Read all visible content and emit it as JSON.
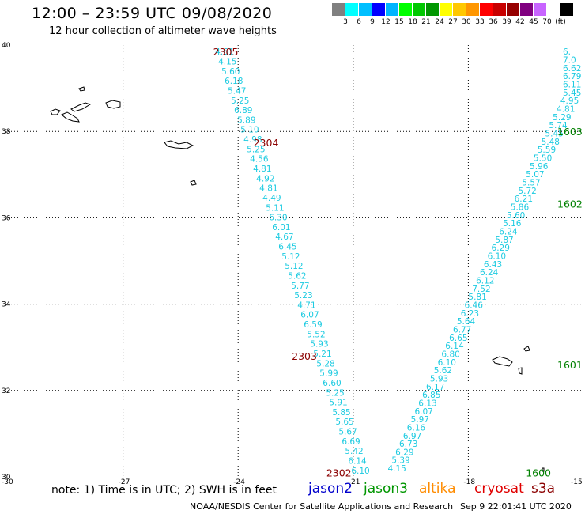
{
  "header": {
    "title": "12:00 – 23:59 UTC 09/08/2020",
    "subtitle": "12 hour collection of altimeter wave heights"
  },
  "scale": {
    "colors": [
      "#808080",
      "#00ffff",
      "#00bfff",
      "#0000ff",
      "#00b4ff",
      "#00ff00",
      "#00c800",
      "#009600",
      "#ffff00",
      "#ffc800",
      "#ff9600",
      "#ff0000",
      "#c80000",
      "#960000",
      "#800080",
      "#c864ff",
      "#ffffff",
      "#000000"
    ],
    "labels": [
      "3",
      "6",
      "9",
      "12",
      "15",
      "18",
      "21",
      "24",
      "27",
      "30",
      "33",
      "36",
      "39",
      "42",
      "45",
      "70",
      "(ft)"
    ]
  },
  "axes": {
    "x_ticks": [
      "-30",
      "-27",
      "-24",
      "-21",
      "-18",
      "-15"
    ],
    "y_ticks": [
      "40",
      "38",
      "36",
      "34",
      "32",
      "30"
    ]
  },
  "track_ids": [
    {
      "id": "2305",
      "sat": "cryosat",
      "x": -28.3,
      "y": 39.85
    },
    {
      "id": "2304",
      "sat": "cryosat",
      "x": -27.25,
      "y": 37.75
    },
    {
      "id": "2303",
      "sat": "cryosat",
      "x": -26.25,
      "y": 32.8
    },
    {
      "id": "2302",
      "sat": "cryosat",
      "x": -25.35,
      "y": 30.1
    },
    {
      "id": "1603",
      "sat": "jason3",
      "x": -15.05,
      "y": 38.0
    },
    {
      "id": "1602",
      "sat": "jason3",
      "x": -17.7,
      "y": 36.33
    },
    {
      "id": "1601",
      "sat": "jason3",
      "x": -18.7,
      "y": 32.6
    },
    {
      "id": "1600",
      "sat": "jason3",
      "x": -20.15,
      "y": 30.1
    }
  ],
  "tracks": [
    {
      "name": "cryosat-left",
      "sat": "cryosat",
      "start": [
        -24.6,
        39.85
      ],
      "end": [
        -21.05,
        30.15
      ],
      "values": [
        "4.61",
        "4.15",
        "5.60",
        "6.18",
        "5.47",
        "5.25",
        "6.89",
        "5.89",
        "5.10",
        "4.98",
        "5.25",
        "4.56",
        "4.81",
        "4.92",
        "4.81",
        "4.49",
        "5.11",
        "6.30",
        "6.01",
        "4.67",
        "6.45",
        "5.12",
        "5.12",
        "5.62",
        "5.77",
        "5.23",
        "4.71",
        "6.07",
        "6.59",
        "5.52",
        "5.93",
        "5.21",
        "5.28",
        "5.99",
        "6.60",
        "5.25",
        "5.91",
        "5.85",
        "5.65",
        "5.67",
        "6.69",
        "5.42",
        "6.14",
        "6.10"
      ]
    },
    {
      "name": "jason3-right",
      "sat": "jason3",
      "start": [
        -20.1,
        30.2
      ],
      "end": [
        -15.0,
        39.85
      ],
      "values": [
        "4.15",
        "5.39",
        "6.29",
        "6.73",
        "6.97",
        "6.16",
        "5.97",
        "6.07",
        "6.13",
        "6.85",
        "6.17",
        "5.93",
        "5.62",
        "6.10",
        "6.80",
        "6.14",
        "6.65",
        "6.77",
        "5.64",
        "6.23",
        "6.46",
        "5.81",
        "7.52",
        "6.12",
        "6.24",
        "6.43",
        "6.10",
        "6.29",
        "5.87",
        "6.24",
        "5.16",
        "5.60",
        "5.86",
        "6.21",
        "5.72",
        "5.57",
        "5.07",
        "5.96",
        "5.50",
        "5.59",
        "5.48",
        "5.45",
        "5.74",
        "5.29",
        "4.81",
        "4.95",
        "5.45",
        "6.11",
        "6.79",
        "6.62",
        "7.0",
        "6."
      ]
    }
  ],
  "legend": {
    "note": "note: 1) Time is in UTC; 2) SWH is in feet",
    "satellites": [
      {
        "label": "jason2",
        "color": "#0000cc"
      },
      {
        "label": "jason3",
        "color": "#009600"
      },
      {
        "label": "altika",
        "color": "#ff8c00"
      },
      {
        "label": "cryosat",
        "color": "#e00000"
      },
      {
        "label": "s3a",
        "color": "#8b0000"
      }
    ]
  },
  "footer": {
    "credit": "NOAA/NESDIS Center for Satellite Applications and Research",
    "timestamp": "Sep  9 22:01:41 UTC 2020"
  }
}
